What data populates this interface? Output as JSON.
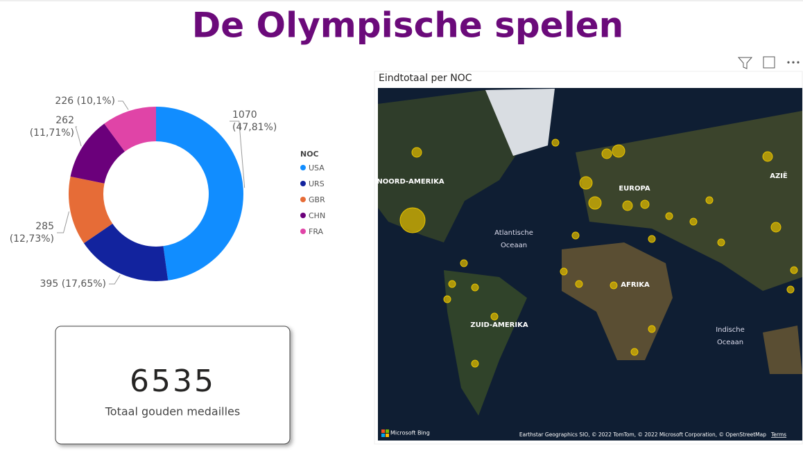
{
  "title": "De Olympische spelen",
  "chart_data": {
    "type": "donut",
    "legend_title": "NOC",
    "series": [
      {
        "name": "USA",
        "color": "#118dff",
        "values": [
          1070
        ],
        "value_labels": [
          "1070 (47,81%)"
        ]
      },
      {
        "name": "URS",
        "color": "#12239e",
        "values": [
          395
        ],
        "value_labels": [
          "395 (17,65%)"
        ]
      },
      {
        "name": "GBR",
        "color": "#e66c37",
        "values": [
          285
        ],
        "value_labels": [
          "285 (12,73%)"
        ]
      },
      {
        "name": "CHN",
        "color": "#6b007b",
        "values": [
          262
        ],
        "value_labels": [
          "262 (11,71%)"
        ]
      },
      {
        "name": "FRA",
        "color": "#e044a7",
        "values": [
          226
        ],
        "value_labels": [
          "226 (10,1%)"
        ]
      }
    ]
  },
  "card": {
    "value": 6535,
    "label": "Totaal gouden medailles"
  },
  "map": {
    "title": "Eindtotaal per NOC",
    "labels": [
      "NOORD-AMERIKA",
      "Atlantische Oceaan",
      "EUROPA",
      "AZIË",
      "AFRIKA",
      "ZUID-AMERIKA",
      "Indische Oceaan"
    ],
    "logo": "Microsoft Bing",
    "attribution": "Earthstar Geographics SIO, © 2022 TomTom, © 2022 Microsoft Corporation, © OpenStreetMap",
    "terms": "Terms"
  }
}
